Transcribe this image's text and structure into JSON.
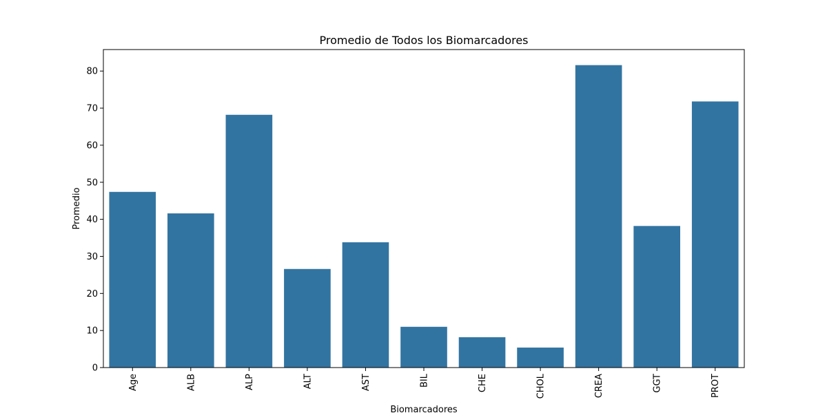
{
  "chart_data": {
    "type": "bar",
    "title": "Promedio de Todos los Biomarcadores",
    "xlabel": "Biomarcadores",
    "ylabel": "Promedio",
    "categories": [
      "Age",
      "ALB",
      "ALP",
      "ALT",
      "AST",
      "BIL",
      "CHE",
      "CHOL",
      "CREA",
      "GGT",
      "PROT"
    ],
    "values": [
      47.4,
      41.6,
      68.2,
      26.6,
      33.8,
      11.0,
      8.2,
      5.4,
      81.6,
      38.2,
      71.8
    ],
    "ylim": [
      0,
      85.8
    ],
    "yticks": [
      0,
      10,
      20,
      30,
      40,
      50,
      60,
      70,
      80
    ],
    "bar_color": "#3274a1",
    "grid": false,
    "xtick_rotation": "vertical"
  }
}
